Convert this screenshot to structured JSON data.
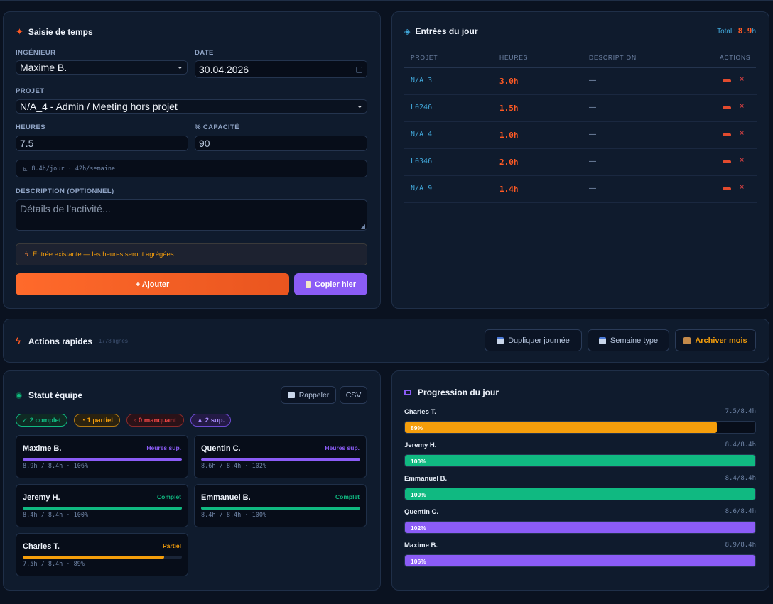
{
  "time_entry": {
    "title": "Saisie de temps",
    "engineer_label": "INGÉNIEUR",
    "engineer_value": "Maxime B.",
    "date_label": "DATE",
    "date_value": "30.04.2026",
    "project_label": "PROJET",
    "project_value": "N/A_4 - Admin / Meeting hors projet",
    "hours_label": "HEURES",
    "hours_value": "7.5",
    "capacity_label": "% CAPACITÉ",
    "capacity_value": "90",
    "hint": "8.4h/jour · 42h/semaine",
    "description_label": "DESCRIPTION (OPTIONNEL)",
    "description_placeholder": "Détails de l’activité...",
    "warning": "Entrée existante — les heures seront agrégées",
    "add_button": "+ Ajouter",
    "copy_button": "Copier hier"
  },
  "entries": {
    "title": "Entrées du jour",
    "total_label": "Total : ",
    "total_value": "8.9",
    "total_unit": "h",
    "headers": [
      "PROJET",
      "HEURES",
      "DESCRIPTION",
      "ACTIONS"
    ],
    "rows": [
      {
        "project": "N/A_3",
        "hours": "3.0h",
        "description": "—"
      },
      {
        "project": "L0246",
        "hours": "1.5h",
        "description": "—"
      },
      {
        "project": "N/A_4",
        "hours": "1.0h",
        "description": "—"
      },
      {
        "project": "L0346",
        "hours": "2.0h",
        "description": "—"
      },
      {
        "project": "N/A_9",
        "hours": "1.4h",
        "description": "—"
      }
    ],
    "delete_glyph": "×"
  },
  "quick_actions": {
    "title": "Actions rapides",
    "count": "1778 lignes",
    "buttons": [
      "Dupliquer journée",
      "Semaine type",
      "Archiver mois"
    ]
  },
  "team_status": {
    "title": "Statut équipe",
    "remind_button": "Rappeler",
    "csv_button": "CSV",
    "pills": [
      "✓ 2 complet",
      "◔ 1 partiel",
      "◦ 0 manquant",
      "▲ 2 sup."
    ],
    "members": [
      {
        "name": "Maxime B.",
        "status": "Heures sup.",
        "detail": "8.9h / 8.4h · 106%",
        "fill": 1.0,
        "color": "#8b5cf6"
      },
      {
        "name": "Quentin C.",
        "status": "Heures sup.",
        "detail": "8.6h / 8.4h · 102%",
        "fill": 1.0,
        "color": "#8b5cf6"
      },
      {
        "name": "Jeremy H.",
        "status": "Complet",
        "detail": "8.4h / 8.4h · 100%",
        "fill": 1.0,
        "color": "#10b981"
      },
      {
        "name": "Emmanuel B.",
        "status": "Complet",
        "detail": "8.4h / 8.4h · 100%",
        "fill": 1.0,
        "color": "#10b981"
      },
      {
        "name": "Charles T.",
        "status": "Partiel",
        "detail": "7.5h / 8.4h · 89%",
        "fill": 0.89,
        "color": "#f59e0b"
      }
    ]
  },
  "progress": {
    "title": "Progression du jour",
    "items": [
      {
        "name": "Charles T.",
        "value": "7.5/8.4h",
        "pct": "89%",
        "fill": 0.89,
        "color": "#f59e0b"
      },
      {
        "name": "Jeremy H.",
        "value": "8.4/8.4h",
        "pct": "100%",
        "fill": 1.0,
        "color": "#10b981"
      },
      {
        "name": "Emmanuel B.",
        "value": "8.4/8.4h",
        "pct": "100%",
        "fill": 1.0,
        "color": "#10b981"
      },
      {
        "name": "Quentin C.",
        "value": "8.6/8.4h",
        "pct": "102%",
        "fill": 1.0,
        "color": "#8b5cf6"
      },
      {
        "name": "Maxime B.",
        "value": "8.9/8.4h",
        "pct": "106%",
        "fill": 1.0,
        "color": "#8b5cf6"
      }
    ]
  },
  "colors": {
    "accent_orange": "#ff5a24",
    "purple": "#8b5cf6",
    "green": "#10b981",
    "amber": "#f59e0b",
    "cyan": "#41a7d9"
  }
}
